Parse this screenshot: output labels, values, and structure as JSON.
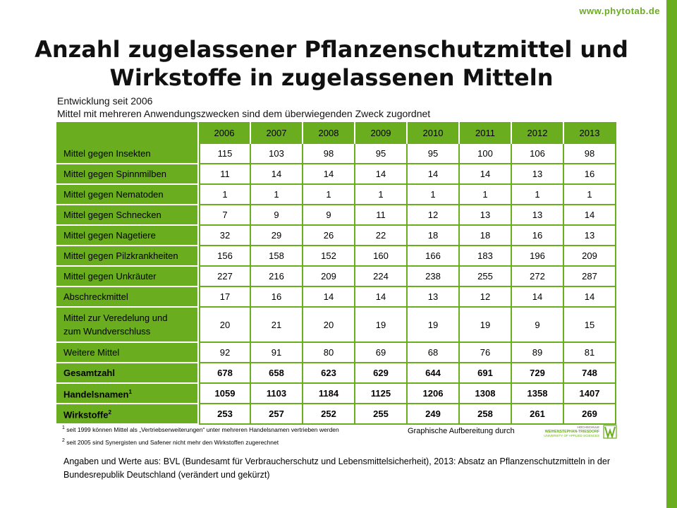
{
  "site": "www.phytotab.de",
  "title_line1": "Anzahl zugelassener Pflanzenschutzmittel und",
  "title_line2": "Wirkstoffe in zugelassenen Mitteln",
  "subtitle_line1": "Entwicklung seit 2006",
  "subtitle_line2": "Mittel mit mehreren Anwendungszwecken sind dem überwiegenden Zweck zugordnet",
  "years": [
    "2006",
    "2007",
    "2008",
    "2009",
    "2010",
    "2011",
    "2012",
    "2013"
  ],
  "rows": [
    {
      "label": "Mittel gegen Insekten",
      "values": [
        "115",
        "103",
        "98",
        "95",
        "95",
        "100",
        "106",
        "98"
      ]
    },
    {
      "label": "Mittel gegen Spinnmilben",
      "values": [
        "11",
        "14",
        "14",
        "14",
        "14",
        "14",
        "13",
        "16"
      ]
    },
    {
      "label": "Mittel gegen Nematoden",
      "values": [
        "1",
        "1",
        "1",
        "1",
        "1",
        "1",
        "1",
        "1"
      ]
    },
    {
      "label": "Mittel gegen Schnecken",
      "values": [
        "7",
        "9",
        "9",
        "11",
        "12",
        "13",
        "13",
        "14"
      ]
    },
    {
      "label": "Mittel gegen Nagetiere",
      "values": [
        "32",
        "29",
        "26",
        "22",
        "18",
        "18",
        "16",
        "13"
      ]
    },
    {
      "label": "Mittel gegen Pilzkrankheiten",
      "values": [
        "156",
        "158",
        "152",
        "160",
        "166",
        "183",
        "196",
        "209"
      ]
    },
    {
      "label": "Mittel gegen Unkräuter",
      "values": [
        "227",
        "216",
        "209",
        "224",
        "238",
        "255",
        "272",
        "287"
      ]
    },
    {
      "label": "Abschreckmittel",
      "values": [
        "17",
        "16",
        "14",
        "14",
        "13",
        "12",
        "14",
        "14"
      ]
    },
    {
      "label_line1": "Mittel zur Veredelung und",
      "label_line2": "zum Wundverschluss",
      "values": [
        "20",
        "21",
        "20",
        "19",
        "19",
        "19",
        "9",
        "15"
      ]
    },
    {
      "label": "Weitere Mittel",
      "values": [
        "92",
        "91",
        "80",
        "69",
        "68",
        "76",
        "89",
        "81"
      ]
    },
    {
      "label": "Gesamtzahl",
      "values": [
        "678",
        "658",
        "623",
        "629",
        "644",
        "691",
        "729",
        "748"
      ]
    },
    {
      "label": "Handelsnamen",
      "sup": "1",
      "values": [
        "1059",
        "1103",
        "1184",
        "1125",
        "1206",
        "1308",
        "1358",
        "1407"
      ]
    },
    {
      "label": "Wirkstoffe",
      "sup": "2",
      "values": [
        "253",
        "257",
        "252",
        "255",
        "249",
        "258",
        "261",
        "269"
      ]
    }
  ],
  "footnote1_num": "1",
  "footnote1": " seit 1999 können Mittel als „Vertriebserweiterungen“ unter mehreren Handelsnamen vertrieben werden",
  "footnote2_num": "2",
  "footnote2": " seit 2005 sind Synergisten und Safener nicht mehr den Wirkstoffen zugerechnet",
  "credit": "Graphische Aufbereitung durch",
  "logo_text": {
    "line1": "HOCHSCHULE",
    "line2": "WEIHENSTEPHAN-TRIESDORF",
    "line3": "UNIVERSITY OF APPLIED SCIENCES"
  },
  "source": "Angaben und Werte aus: BVL (Bundesamt für Verbraucherschutz und Lebensmittelsicherheit), 2013: Absatz an Pflanzenschutzmitteln in der Bundesrepublik Deutschland (verändert und gekürzt)",
  "colors": {
    "accent": "#6aad1f"
  }
}
